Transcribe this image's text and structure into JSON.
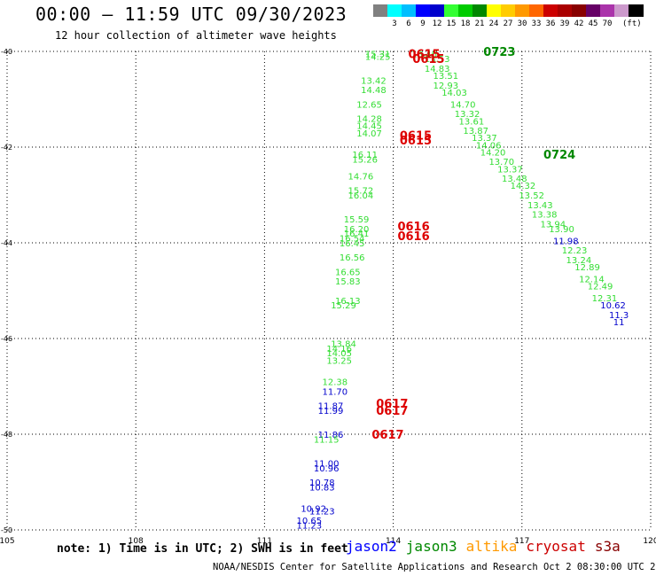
{
  "title": "00:00 – 11:59 UTC 09/30/2023",
  "subtitle": "12 hour collection of altimeter wave heights",
  "colorbar": {
    "unit": "(ft)",
    "swatches": [
      "#808080",
      "#00ffff",
      "#00bfff",
      "#0000ff",
      "#0000cd",
      "#33ff33",
      "#00cc00",
      "#008800",
      "#ffff00",
      "#ffcc00",
      "#ff9900",
      "#ff6600",
      "#cc0000",
      "#aa0000",
      "#880000",
      "#660066",
      "#aa33aa",
      "#cc99cc",
      "#000000"
    ],
    "labels": [
      "3",
      "6",
      "9",
      "12",
      "15",
      "18",
      "21",
      "24",
      "27",
      "30",
      "33",
      "36",
      "39",
      "42",
      "45",
      "70"
    ]
  },
  "map": {
    "lon_ticks": [
      "105",
      "108",
      "111",
      "114",
      "117",
      "120"
    ],
    "lat_ticks": [
      "-40",
      "-42",
      "-44",
      "-46",
      "-48",
      "-50"
    ],
    "lon_range": [
      105,
      120
    ],
    "lat_range": [
      -40,
      -50
    ]
  },
  "track1": {
    "lon": [
      113.8,
      113.8,
      113.7,
      113.7,
      113.6,
      113.6,
      113.6,
      113.6,
      113.5,
      113.5,
      113.4,
      113.4,
      113.4,
      113.3,
      113.3,
      113.3,
      113.2,
      113.2,
      113.2,
      113.1,
      113.1,
      113.1,
      113.0,
      113.0,
      112.9,
      112.9,
      112.9,
      112.8,
      112.8,
      112.7,
      112.7,
      112.7,
      112.6,
      112.6,
      112.6,
      112.5,
      112.5,
      112.5
    ],
    "lat": [
      -40.05,
      -40.1,
      -40.6,
      -40.8,
      -41.1,
      -41.4,
      -41.55,
      -41.7,
      -42.15,
      -42.25,
      -42.6,
      -42.9,
      -43.0,
      -43.5,
      -43.7,
      -43.8,
      -43.9,
      -44.0,
      -44.3,
      -44.6,
      -44.8,
      -45.2,
      -45.3,
      -46.1,
      -46.2,
      -46.3,
      -46.45,
      -46.9,
      -47.1,
      -47.4,
      -47.5,
      -48.0,
      -48.1,
      -48.6,
      -48.7,
      -49.0,
      -49.1,
      -49.6
    ],
    "values": [
      "15.31",
      "14.25",
      "13.42",
      "14.48",
      "12.65",
      "14.28",
      "14.45",
      "14.07",
      "16.11",
      "15.26",
      "14.76",
      "15.72",
      "16.04",
      "15.59",
      "16.20",
      "16.41",
      "16.54",
      "16.45",
      "16.56",
      "16.65",
      "15.83",
      "16.13",
      "15.29",
      "13.84",
      "14.16",
      "14.05",
      "13.25",
      "12.38",
      "11.70",
      "11.87",
      "11.99",
      "11.86",
      "11.15",
      "11.00",
      "10.96",
      "10.78",
      "10.83",
      "11.23"
    ],
    "colors": [
      "g",
      "g",
      "g",
      "g",
      "g",
      "g",
      "g",
      "g",
      "g",
      "g",
      "g",
      "g",
      "g",
      "g",
      "g",
      "g",
      "g",
      "g",
      "g",
      "g",
      "g",
      "g",
      "g",
      "g",
      "g",
      "g",
      "g",
      "g",
      "b",
      "b",
      "b",
      "b",
      "g",
      "b",
      "b",
      "b",
      "b",
      "b"
    ],
    "extra": [
      {
        "lon": 112.3,
        "lat": -49.55,
        "value": "10.92",
        "c": "b"
      },
      {
        "lon": 112.2,
        "lat": -49.8,
        "value": "10.65",
        "c": "b"
      },
      {
        "lon": 112.2,
        "lat": -49.9,
        "value": "11.23",
        "c": "b"
      }
    ],
    "times": [
      {
        "lon": 114.35,
        "lat": -40.05,
        "value": "0615"
      },
      {
        "lon": 114.45,
        "lat": -40.15,
        "value": "0615"
      },
      {
        "lon": 114.15,
        "lat": -41.75,
        "value": "0615"
      },
      {
        "lon": 114.15,
        "lat": -41.85,
        "value": "0615"
      },
      {
        "lon": 114.1,
        "lat": -43.65,
        "value": "0616"
      },
      {
        "lon": 114.1,
        "lat": -43.85,
        "value": "0616"
      },
      {
        "lon": 113.6,
        "lat": -47.35,
        "value": "0617"
      },
      {
        "lon": 113.6,
        "lat": -47.5,
        "value": "0617"
      },
      {
        "lon": 113.5,
        "lat": -48.0,
        "value": "0617"
      }
    ]
  },
  "track2": {
    "lon": [
      114.8,
      115.1,
      115.1,
      115.3,
      115.3,
      115.5,
      115.7,
      115.8,
      115.9,
      116.0,
      116.2,
      116.3,
      116.4,
      116.6,
      116.8,
      116.9,
      117.1,
      117.3,
      117.5,
      117.6,
      117.8,
      118.0,
      118.1,
      118.3,
      118.4,
      118.6,
      118.7,
      118.9,
      119.0,
      119.2,
      119.4,
      119.5
    ],
    "lat": [
      -40.05,
      -40.15,
      -40.35,
      -40.5,
      -40.7,
      -40.85,
      -41.1,
      -41.3,
      -41.45,
      -41.65,
      -41.8,
      -41.95,
      -42.1,
      -42.3,
      -42.45,
      -42.65,
      -42.8,
      -43.0,
      -43.2,
      -43.4,
      -43.6,
      -43.7,
      -43.95,
      -44.15,
      -44.35,
      -44.5,
      -44.75,
      -44.9,
      -45.15,
      -45.3,
      -45.5,
      -45.65
    ],
    "values": [
      "13.46",
      "13.53",
      "14.83",
      "13.51",
      "12.93",
      "14.03",
      "14.70",
      "13.32",
      "13.61",
      "13.87",
      "13.37",
      "14.06",
      "14.20",
      "13.70",
      "13.37",
      "13.48",
      "14.32",
      "13.52",
      "13.43",
      "13.38",
      "13.94",
      "13.90",
      "11.98",
      "12.23",
      "13.24",
      "12.89",
      "12.14",
      "12.49",
      "12.31",
      "10.62",
      "11.3",
      "11"
    ],
    "colors": [
      "g",
      "g",
      "g",
      "g",
      "g",
      "g",
      "g",
      "g",
      "g",
      "g",
      "g",
      "g",
      "g",
      "g",
      "g",
      "g",
      "g",
      "g",
      "g",
      "g",
      "g",
      "g",
      "b",
      "g",
      "g",
      "g",
      "g",
      "g",
      "g",
      "b",
      "b",
      "b"
    ],
    "times": [
      {
        "lon": 116.1,
        "lat": -40.0,
        "value": "0723"
      },
      {
        "lon": 117.5,
        "lat": -42.15,
        "value": "0724"
      }
    ]
  },
  "note": "note: 1) Time is in UTC; 2) SWH is in feet",
  "legend": [
    {
      "label": "jason2",
      "color": "#0000ff"
    },
    {
      "label": "jason3",
      "color": "#008800"
    },
    {
      "label": "altika",
      "color": "#ff9900"
    },
    {
      "label": "cryosat",
      "color": "#cc0000"
    },
    {
      "label": "s3a",
      "color": "#880000"
    }
  ],
  "credit": "NOAA/NESDIS Center for Satellite Applications and Research    Oct  2 08:30:00 UTC 2023"
}
